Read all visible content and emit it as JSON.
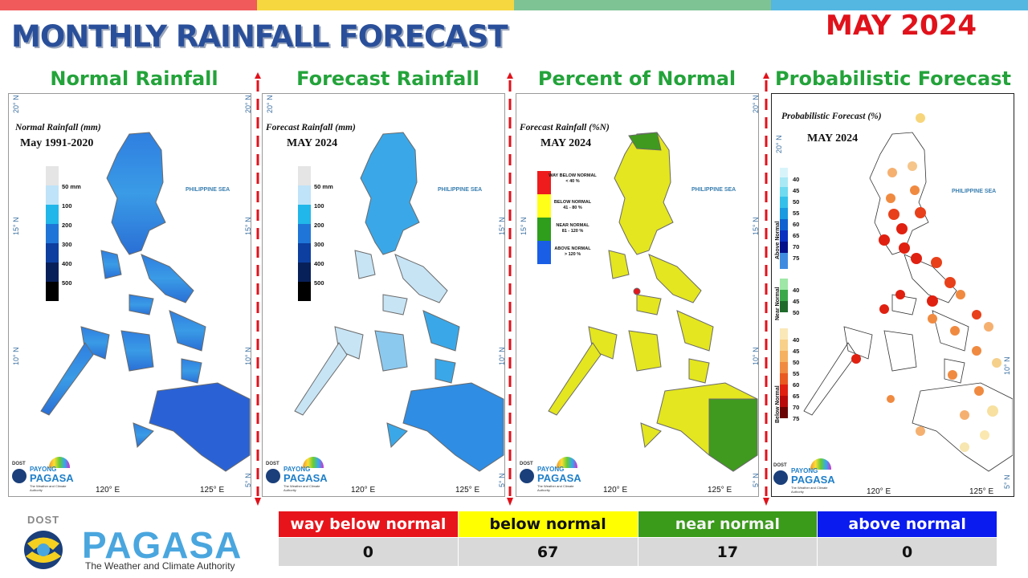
{
  "colors": {
    "top_bar": [
      "#f05a5b",
      "#f6d740",
      "#7ec394",
      "#54b7e2"
    ],
    "title": "#2a4f9a",
    "month": "#e0121b",
    "panel_title": "#23a33a",
    "category_headers": [
      "#e8141b",
      "#ffff00",
      "#3a9a1a",
      "#0a1bf0"
    ],
    "pagasa_blue": "#4aa6de"
  },
  "header": {
    "title": "MONTHLY RAINFALL FORECAST",
    "month": "MAY 2024"
  },
  "panels": [
    {
      "title": "Normal Rainfall",
      "inner_title": "Normal Rainfall (mm)",
      "date": "May 1991-2020",
      "sea_label": "PHILIPPINE SEA",
      "legend": [
        "50 mm",
        "100",
        "200",
        "300",
        "400",
        "500"
      ]
    },
    {
      "title": "Forecast Rainfall",
      "inner_title": "Forecast Rainfall (mm)",
      "date": "MAY 2024",
      "sea_label": "PHILIPPINE SEA",
      "legend": [
        "50 mm",
        "100",
        "200",
        "300",
        "400",
        "500"
      ]
    },
    {
      "title": "Percent of Normal",
      "inner_title": "Forecast Rainfall (%N)",
      "date": "MAY 2024",
      "sea_label": "PHILIPPINE SEA",
      "categories": [
        {
          "label": "WAY BELOW NORMAL",
          "range": "< 40 %",
          "color": "#ee1c1c"
        },
        {
          "label": "BELOW NORMAL",
          "range": "41 - 80 %",
          "color": "#ffff1a"
        },
        {
          "label": "NEAR NORMAL",
          "range": "81 - 120 %",
          "color": "#2e9e1c"
        },
        {
          "label": "ABOVE NORMAL",
          "range": "> 120 %",
          "color": "#1a5ee6"
        }
      ]
    },
    {
      "title": "Probabilistic Forecast",
      "inner_title": "Probabilistic Forecast (%)",
      "date": "MAY 2024",
      "sea_label": "PHILIPPINE SEA",
      "legend_groups": [
        {
          "label": "Above Normal",
          "values": [
            "40",
            "45",
            "50",
            "55",
            "60",
            "65",
            "70",
            "75"
          ]
        },
        {
          "label": "Near Normal",
          "values": [
            "40",
            "45",
            "50"
          ]
        },
        {
          "label": "Below Normal",
          "values": [
            "40",
            "45",
            "50",
            "55",
            "60",
            "65",
            "70",
            "75"
          ]
        }
      ]
    }
  ],
  "axes": {
    "lat": [
      "20° N",
      "15° N",
      "10° N",
      "5° N"
    ],
    "lon": [
      "120° E",
      "125° E"
    ]
  },
  "panel_logo": {
    "dost": "DOST",
    "payong": "PAYONG",
    "pagasa": "PAGASA",
    "tagline": "The Weather and Climate Authority"
  },
  "summary": {
    "headers": [
      "way below normal",
      "below normal",
      "near normal",
      "above normal"
    ],
    "values": [
      "0",
      "67",
      "17",
      "0"
    ]
  },
  "logo": {
    "dost": "DOST",
    "name": "PAGASA",
    "tagline": "The Weather and Climate Authority"
  }
}
